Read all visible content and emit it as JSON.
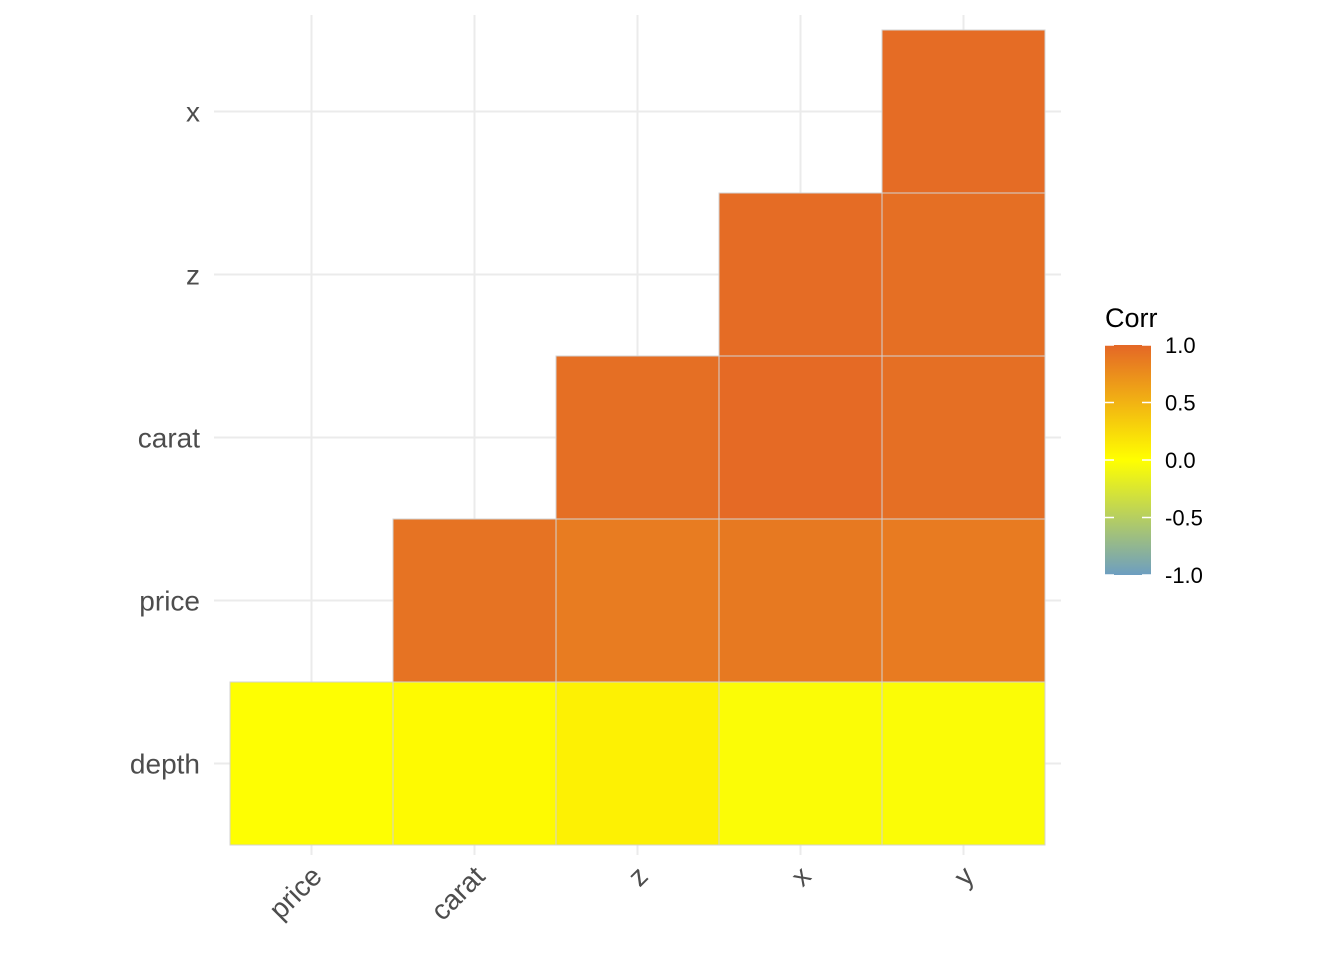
{
  "chart_data": {
    "type": "heatmap",
    "x_labels": [
      "price",
      "carat",
      "z",
      "x",
      "y"
    ],
    "y_labels": [
      "depth",
      "price",
      "carat",
      "z",
      "x"
    ],
    "cells": [
      {
        "x": "price",
        "y": "depth",
        "value": -0.01
      },
      {
        "x": "carat",
        "y": "depth",
        "value": 0.03
      },
      {
        "x": "z",
        "y": "depth",
        "value": 0.09
      },
      {
        "x": "x",
        "y": "depth",
        "value": -0.03
      },
      {
        "x": "y",
        "y": "depth",
        "value": -0.03
      },
      {
        "x": "carat",
        "y": "price",
        "value": 0.92
      },
      {
        "x": "z",
        "y": "price",
        "value": 0.86
      },
      {
        "x": "x",
        "y": "price",
        "value": 0.88
      },
      {
        "x": "y",
        "y": "price",
        "value": 0.87
      },
      {
        "x": "z",
        "y": "carat",
        "value": 0.95
      },
      {
        "x": "x",
        "y": "carat",
        "value": 0.98
      },
      {
        "x": "y",
        "y": "carat",
        "value": 0.95
      },
      {
        "x": "x",
        "y": "z",
        "value": 0.97
      },
      {
        "x": "y",
        "y": "z",
        "value": 0.95
      },
      {
        "x": "y",
        "y": "x",
        "value": 0.97
      }
    ],
    "legend": {
      "title": "Corr",
      "breaks": [
        1.0,
        0.5,
        0.0,
        -0.5,
        -1.0
      ],
      "break_labels": [
        "1.0",
        "0.5",
        "0.0",
        "-0.5",
        "-1.0"
      ],
      "limits": [
        -1,
        1
      ],
      "colors": {
        "low": "#6d9ec1",
        "mid": "#ffff00",
        "high": "#e46726"
      },
      "placement": "right"
    },
    "grid": true,
    "tile_border_color": "#d3d3d3",
    "x_tick_rotation": "45 degrees"
  }
}
